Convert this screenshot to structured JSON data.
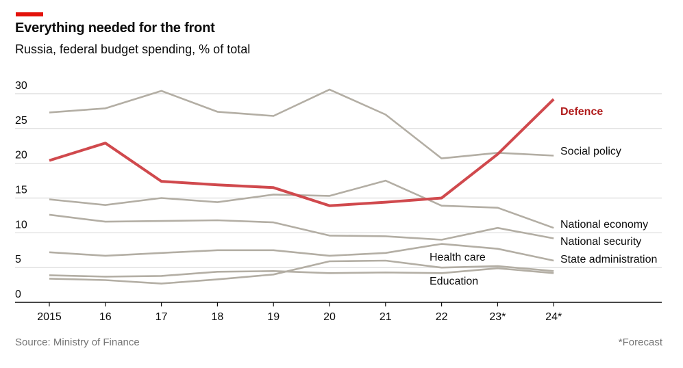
{
  "header": {
    "title": "Everything needed for the front",
    "subtitle": "Russia, federal budget spending, % of total"
  },
  "footer": {
    "source": "Source: Ministry of Finance",
    "note": "*Forecast"
  },
  "colors": {
    "accent": "#e3120b",
    "highlight_line": "#d0494d",
    "highlight_label": "#b01b1b",
    "other_lines": "#b3aea4",
    "gridline": "#d9d9d9",
    "axis": "#0c0c0c"
  },
  "chart_data": {
    "type": "line",
    "title": "Everything needed for the front",
    "subtitle": "Russia, federal budget spending, % of total",
    "xlabel": "",
    "ylabel": "% of total",
    "x": [
      "2015",
      "16",
      "17",
      "18",
      "19",
      "20",
      "21",
      "22",
      "23*",
      "24*"
    ],
    "ylim": [
      0,
      30
    ],
    "yticks": [
      0,
      5,
      10,
      15,
      20,
      25,
      30
    ],
    "grid": true,
    "legend": "direct labels at line ends (right)",
    "series": [
      {
        "name": "Social policy",
        "highlight": false,
        "values": [
          27.3,
          27.9,
          30.4,
          27.4,
          26.8,
          30.6,
          27.0,
          20.7,
          21.5,
          21.1
        ]
      },
      {
        "name": "National economy",
        "highlight": false,
        "values": [
          14.8,
          14.0,
          15.0,
          14.4,
          15.5,
          15.3,
          17.5,
          13.9,
          13.6,
          10.7
        ]
      },
      {
        "name": "National security",
        "highlight": false,
        "values": [
          12.6,
          11.6,
          11.7,
          11.8,
          11.5,
          9.6,
          9.5,
          9.0,
          10.7,
          9.2
        ]
      },
      {
        "name": "State administration",
        "highlight": false,
        "values": [
          7.2,
          6.7,
          7.1,
          7.5,
          7.5,
          6.7,
          7.1,
          8.4,
          7.7,
          6.0
        ]
      },
      {
        "name": "Health care",
        "highlight": false,
        "values": [
          3.4,
          3.2,
          2.7,
          3.3,
          4.0,
          5.9,
          6.0,
          5.0,
          5.2,
          4.5
        ]
      },
      {
        "name": "Education",
        "highlight": false,
        "values": [
          3.9,
          3.7,
          3.8,
          4.4,
          4.5,
          4.2,
          4.3,
          4.2,
          4.9,
          4.2
        ]
      },
      {
        "name": "Defence",
        "highlight": true,
        "values": [
          20.4,
          22.9,
          17.4,
          16.9,
          16.5,
          13.9,
          14.4,
          15.0,
          21.3,
          29.2
        ]
      }
    ],
    "annotations": [
      "*Forecast"
    ]
  }
}
